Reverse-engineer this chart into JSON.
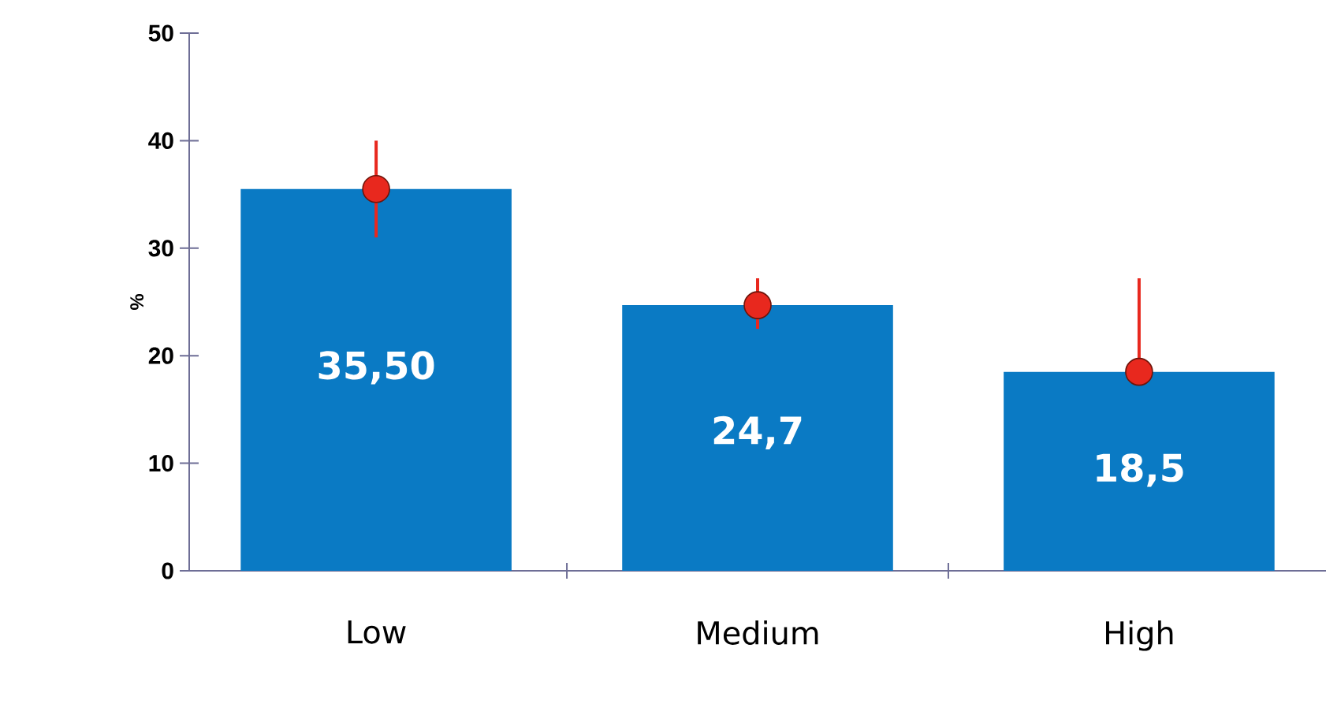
{
  "chart_data": {
    "type": "bar",
    "ylabel": "%",
    "categories": [
      "Low",
      "Medium",
      "High"
    ],
    "series": [
      {
        "type": "bar",
        "color": "#0a7ac4",
        "values": [
          35.5,
          24.7,
          18.5
        ],
        "value_labels": [
          "35,50",
          "24,7",
          "18,5"
        ]
      },
      {
        "type": "scatter",
        "color": "#e8281e",
        "x": [
          "Low",
          "Medium",
          "High"
        ],
        "values": [
          35.5,
          24.7,
          18.5
        ],
        "errors": [
          [
            31,
            40
          ],
          [
            22.5,
            27.2
          ],
          [
            18.5,
            27.2
          ]
        ]
      }
    ],
    "ylim": [
      0,
      50
    ],
    "yticks": [
      0,
      10,
      20,
      30,
      40,
      50
    ],
    "grid": false
  }
}
